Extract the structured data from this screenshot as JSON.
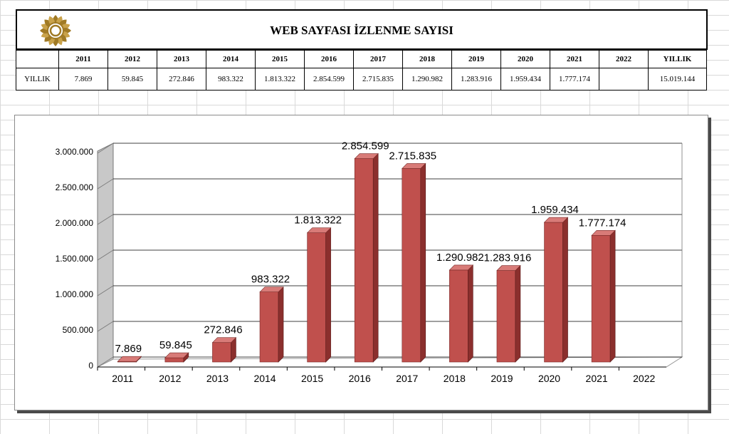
{
  "page_title": "WEB SAYFASI İZLENME SAYISI",
  "table": {
    "row_label": "YILLIK",
    "years": [
      "2011",
      "2012",
      "2013",
      "2014",
      "2015",
      "2016",
      "2017",
      "2018",
      "2019",
      "2020",
      "2021",
      "2022"
    ],
    "values": [
      "7.869",
      "59.845",
      "272.846",
      "983.322",
      "1.813.322",
      "2.854.599",
      "2.715.835",
      "1.290.982",
      "1.283.916",
      "1.959.434",
      "1.777.174",
      ""
    ],
    "total_header": "YILLIK",
    "total_value": "15.019.144"
  },
  "colors": {
    "bar_front": "#c0504d",
    "bar_side": "#8b2f2d",
    "bar_top": "#d87b78",
    "wall": "#c8c8c8"
  },
  "chart_data": {
    "type": "bar",
    "categories": [
      "2011",
      "2012",
      "2013",
      "2014",
      "2015",
      "2016",
      "2017",
      "2018",
      "2019",
      "2020",
      "2021",
      "2022"
    ],
    "values": [
      7869,
      59845,
      272846,
      983322,
      1813322,
      2854599,
      2715835,
      1290982,
      1283916,
      1959434,
      1777174,
      null
    ],
    "data_labels": [
      "7.869",
      "59.845",
      "272.846",
      "983.322",
      "1.813.322",
      "2.854.599",
      "2.715.835",
      "1.290.982",
      "1.283.916",
      "1.959.434",
      "1.777.174",
      ""
    ],
    "y_ticks": [
      "0",
      "500.000",
      "1.000.000",
      "1.500.000",
      "2.000.000",
      "2.500.000",
      "3.000.000"
    ],
    "ylim": [
      0,
      3000000
    ],
    "grid": true,
    "legend": "none",
    "style": "3d-bar"
  }
}
